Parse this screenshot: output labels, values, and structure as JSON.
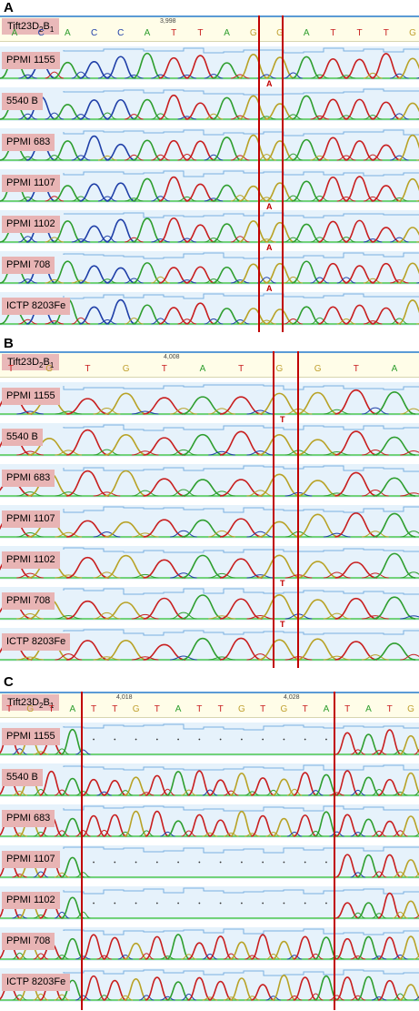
{
  "panels": [
    {
      "letter": "A",
      "reference": {
        "name": "Tift23D",
        "sub2": "2",
        "mid": "B",
        "sub1": "1"
      },
      "position_label": "3,998",
      "bases": [
        "A",
        "C",
        "A",
        "C",
        "C",
        "A",
        "T",
        "T",
        "A",
        "G",
        "G",
        "A",
        "T",
        "T",
        "T",
        "G"
      ],
      "samples": [
        "PPMI 1155",
        "5540 B",
        "PPMI 683",
        "PPMI 1107",
        "PPMI 1102",
        "PPMI 708",
        "ICTP 8203Fe"
      ],
      "snp_calls": {
        "PPMI 1155": "A",
        "PPMI 1107": "A",
        "PPMI 1102": "A",
        "PPMI 708": "A"
      }
    },
    {
      "letter": "B",
      "reference": {
        "name": "Tift23D",
        "sub2": "2",
        "mid": "B",
        "sub1": "1"
      },
      "position_label": "4,008",
      "bases": [
        "T",
        "G",
        "T",
        "G",
        "T",
        "A",
        "T",
        "G",
        "G",
        "T",
        "A"
      ],
      "samples": [
        "PPMI 1155",
        "5540 B",
        "PPMI 683",
        "PPMI 1107",
        "PPMI 1102",
        "PPMI 708",
        "ICTP 8203Fe"
      ],
      "snp_calls": {
        "PPMI 1155": "T",
        "PPMI 1102": "T",
        "PPMI 708": "T"
      }
    },
    {
      "letter": "C",
      "reference": {
        "name": "Tift23D",
        "sub2": "2",
        "mid": "B",
        "sub1": "1"
      },
      "position_labels": [
        "4,018",
        "4,028"
      ],
      "bases": [
        "T",
        "G",
        "T",
        "A",
        "T",
        "T",
        "G",
        "T",
        "A",
        "T",
        "T",
        "G",
        "T",
        "G",
        "T",
        "A",
        "T",
        "A",
        "T",
        "G"
      ],
      "samples": [
        "PPMI 1155",
        "5540 B",
        "PPMI 683",
        "PPMI 1107",
        "PPMI 1102",
        "PPMI 708",
        "ICTP 8203Fe"
      ],
      "deletion_samples": [
        "PPMI 1155",
        "PPMI 1107",
        "PPMI 1102"
      ]
    }
  ],
  "colors": {
    "A": "#2e9e2e",
    "C": "#1f3fa8",
    "G": "#2a2a2a",
    "T": "#c81e1e",
    "trace_G": "#b8a226",
    "marker": "#c00000",
    "label_bg": "#e8b4b4",
    "ref_bg": "#fffde8",
    "track_bg": "#e6f2fb",
    "baseline": "#2ebf2e"
  }
}
